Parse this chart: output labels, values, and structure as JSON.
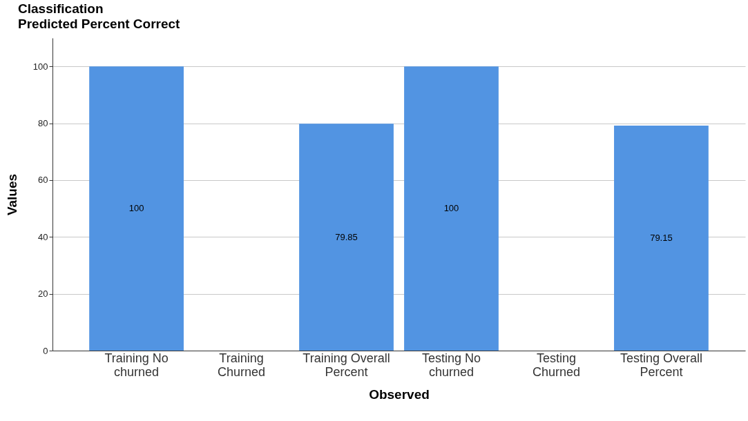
{
  "chart_data": {
    "type": "bar",
    "title": "Classification",
    "subtitle": "Predicted Percent Correct",
    "xlabel": "Observed",
    "ylabel": "Values",
    "categories": [
      "Training No churned",
      "Training Churned",
      "Training Overall Percent",
      "Testing No churned",
      "Testing Churned",
      "Testing Overall Percent"
    ],
    "values": [
      100,
      0,
      79.85,
      100,
      0,
      79.15
    ],
    "value_labels": [
      "100",
      null,
      "79.85",
      "100",
      null,
      "79.15"
    ],
    "color": "#5294e2",
    "ylim": [
      0,
      110
    ],
    "yticks": [
      0,
      20,
      40,
      60,
      80,
      100
    ],
    "grid": "y"
  }
}
